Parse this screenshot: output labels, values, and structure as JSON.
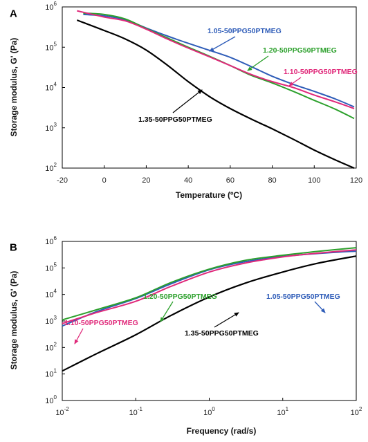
{
  "chart_data": [
    {
      "type": "line",
      "panel_label": "A",
      "xlabel": "Temperature  (ºC)",
      "ylabel": "Storage modulus, G'  (Pa)",
      "xscale": "linear",
      "yscale": "log",
      "xlim": [
        -20,
        120
      ],
      "ylim": [
        100,
        1000000
      ],
      "xticks": [
        "-20",
        "0",
        "20",
        "40",
        "60",
        "80",
        "100",
        "120"
      ],
      "yticks": [
        {
          "base": "10",
          "exp": "2"
        },
        {
          "base": "10",
          "exp": "3"
        },
        {
          "base": "10",
          "exp": "4"
        },
        {
          "base": "10",
          "exp": "5"
        },
        {
          "base": "10",
          "exp": "6"
        }
      ],
      "series": [
        {
          "name": "1.05-50PPG50PTMEG",
          "color": "#2e5cb8",
          "x": [
            -10,
            0,
            10,
            20,
            30,
            40,
            50,
            60,
            70,
            80,
            90,
            100,
            110,
            119
          ],
          "y": [
            650000,
            600000,
            480000,
            300000,
            190000,
            125000,
            84000,
            56000,
            33000,
            19000,
            12000,
            8000,
            5200,
            3300
          ]
        },
        {
          "name": "1.20-50PPG50PTMEG",
          "color": "#2ca02c",
          "x": [
            -10,
            0,
            10,
            20,
            30,
            40,
            50,
            60,
            70,
            80,
            90,
            100,
            110,
            119
          ],
          "y": [
            700000,
            650000,
            500000,
            290000,
            170000,
            100000,
            60000,
            35000,
            20000,
            13000,
            8000,
            4800,
            2900,
            1700
          ]
        },
        {
          "name": "1.10-50PPG50PTMEG",
          "color": "#e0297a",
          "x": [
            -13,
            0,
            10,
            20,
            30,
            40,
            50,
            60,
            70,
            80,
            90,
            100,
            110,
            119
          ],
          "y": [
            800000,
            560000,
            450000,
            280000,
            160000,
            95000,
            58000,
            35000,
            21000,
            14000,
            10000,
            6500,
            4400,
            3000
          ]
        },
        {
          "name": "1.35-50PPG50PTMEG",
          "color": "#000000",
          "x": [
            -13,
            0,
            10,
            20,
            30,
            40,
            50,
            60,
            70,
            80,
            90,
            100,
            110,
            119
          ],
          "y": [
            470000,
            260000,
            160000,
            85000,
            36000,
            14000,
            6000,
            3000,
            1650,
            940,
            520,
            280,
            160,
            100
          ]
        }
      ],
      "annotations": [
        {
          "text": "1.05-50PPG50PTMEG",
          "color": "#2e5cb8"
        },
        {
          "text": "1.20-50PPG50PTMEG",
          "color": "#2ca02c"
        },
        {
          "text": "1.10-50PPG50PTMEG",
          "color": "#e0297a"
        },
        {
          "text": "1.35-50PPG50PTMEG",
          "color": "#000000"
        }
      ]
    },
    {
      "type": "line",
      "panel_label": "B",
      "xlabel": "Frequency  (rad/s)",
      "ylabel": "Storage modulus, G'  (Pa)",
      "xscale": "log",
      "yscale": "log",
      "xlim": [
        0.01,
        100
      ],
      "ylim": [
        1,
        1000000
      ],
      "xticks": [
        {
          "base": "10",
          "exp": "-2"
        },
        {
          "base": "10",
          "exp": "-1"
        },
        {
          "base": "10",
          "exp": "0"
        },
        {
          "base": "10",
          "exp": "1"
        },
        {
          "base": "10",
          "exp": "2"
        }
      ],
      "yticks": [
        {
          "base": "10",
          "exp": "0"
        },
        {
          "base": "10",
          "exp": "1"
        },
        {
          "base": "10",
          "exp": "2"
        },
        {
          "base": "10",
          "exp": "3"
        },
        {
          "base": "10",
          "exp": "4"
        },
        {
          "base": "10",
          "exp": "5"
        },
        {
          "base": "10",
          "exp": "6"
        }
      ],
      "series": [
        {
          "name": "1.05-50PPG50PTMEG",
          "color": "#2e5cb8",
          "x": [
            0.01,
            0.03,
            0.1,
            0.3,
            1,
            3,
            10,
            30,
            100
          ],
          "y": [
            650,
            2300,
            7000,
            25000,
            85000,
            170000,
            270000,
            350000,
            430000
          ]
        },
        {
          "name": "1.20-50PPG50PTMEG",
          "color": "#2ca02c",
          "x": [
            0.01,
            0.03,
            0.1,
            0.3,
            1,
            3,
            10,
            30,
            100
          ],
          "y": [
            1100,
            2700,
            7500,
            28000,
            90000,
            190000,
            300000,
            420000,
            580000
          ]
        },
        {
          "name": "1.10-50PPG50PTMEG",
          "color": "#e0297a",
          "x": [
            0.01,
            0.03,
            0.1,
            0.3,
            1,
            3,
            10,
            30,
            100
          ],
          "y": [
            800,
            2100,
            5500,
            20000,
            70000,
            150000,
            260000,
            360000,
            480000
          ]
        },
        {
          "name": "1.35-50PPG50PTMEG",
          "color": "#000000",
          "x": [
            0.01,
            0.03,
            0.1,
            0.3,
            1,
            3,
            10,
            30,
            100
          ],
          "y": [
            13,
            60,
            300,
            1600,
            8000,
            26000,
            70000,
            150000,
            280000
          ]
        }
      ],
      "annotations": [
        {
          "text": "1.05-50PPG50PTMEG",
          "color": "#2e5cb8"
        },
        {
          "text": "1.20-50PPG50PTMEG",
          "color": "#2ca02c"
        },
        {
          "text": "1.10-50PPG50PTMEG",
          "color": "#e0297a"
        },
        {
          "text": "1.35-50PPG50PTMEG",
          "color": "#000000"
        }
      ]
    }
  ]
}
